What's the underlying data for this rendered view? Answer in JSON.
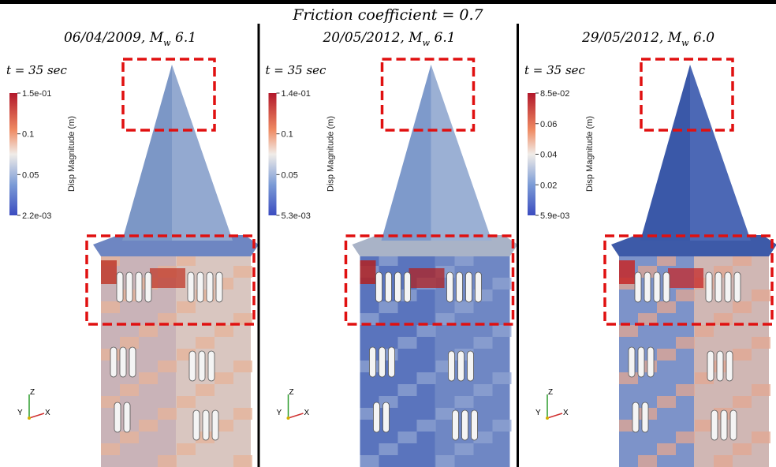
{
  "title": "Friction coefficient = 0.7",
  "panels": [
    {
      "date": "06/04/2009,",
      "mag_symbol": "M",
      "mag_subscript": "w",
      "mag_value": "6.1",
      "time": "t = 35 sec",
      "colorbar": {
        "title": "Disp Magnitude (m)",
        "labels": [
          "1.5e-01",
          "0.1",
          "0.05",
          "2.2e-03"
        ]
      },
      "axes": [
        "Z",
        "Y",
        "X"
      ]
    },
    {
      "date": "20/05/2012,",
      "mag_symbol": "M",
      "mag_subscript": "w",
      "mag_value": "6.1",
      "time": "t = 35 sec",
      "colorbar": {
        "title": "Disp Magnitude (m)",
        "labels": [
          "1.4e-01",
          "0.1",
          "0.05",
          "5.3e-03"
        ]
      },
      "axes": [
        "Z",
        "Y",
        "X"
      ]
    },
    {
      "date": "29/05/2012,",
      "mag_symbol": "M",
      "mag_subscript": "w",
      "mag_value": "6.0",
      "time": "t = 35 sec",
      "colorbar": {
        "title": "Disp Magnitude (m)",
        "labels": [
          "8.5e-02",
          "0.06",
          "0.04",
          "0.02",
          "5.9e-03"
        ]
      },
      "axes": [
        "Z",
        "Y",
        "X"
      ]
    }
  ]
}
